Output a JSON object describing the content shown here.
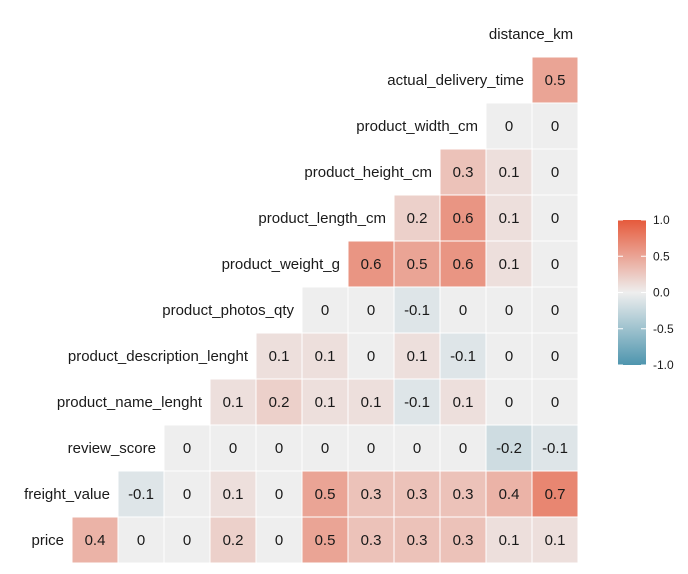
{
  "chart_data": {
    "type": "heatmap",
    "variables": [
      "price",
      "freight_value",
      "review_score",
      "product_name_lenght",
      "product_description_lenght",
      "product_photos_qty",
      "product_weight_g",
      "product_length_cm",
      "product_height_cm",
      "product_width_cm",
      "actual_delivery_time",
      "distance_km"
    ],
    "matrix": [
      [
        0.4
      ],
      [
        -0.1,
        0,
        0.1,
        0,
        0.5,
        0.3,
        0.3,
        0.3,
        0.4,
        0.7
      ],
      [
        0,
        0,
        0,
        0,
        0,
        0,
        0,
        -0.2,
        -0.1
      ],
      [
        0.1,
        0.2,
        0.1,
        0.1,
        -0.1,
        0.1,
        0,
        0
      ],
      [
        0.1,
        0.1,
        0,
        0.1,
        -0.1,
        0,
        0
      ],
      [
        0,
        0,
        -0.1,
        0,
        0,
        0
      ],
      [
        0.6,
        0.5,
        0.6,
        0.1,
        0
      ],
      [
        0.2,
        0.6,
        0.1,
        0
      ],
      [
        0.3,
        0.1,
        0
      ],
      [
        0,
        0
      ],
      [
        0.5
      ]
    ],
    "price_row": [
      0.4,
      0,
      0,
      0.2,
      0,
      0.5,
      0.3,
      0.3,
      0.3,
      0.1,
      0.1
    ],
    "legend": {
      "ticks": [
        "1.0",
        "0.5",
        "0.0",
        "-0.5",
        "-1.0"
      ],
      "range": [
        -1,
        1
      ],
      "placement": "right",
      "colors": {
        "high": "#e65a3c",
        "mid": "#eeeeee",
        "low": "#4e95ae"
      }
    }
  }
}
